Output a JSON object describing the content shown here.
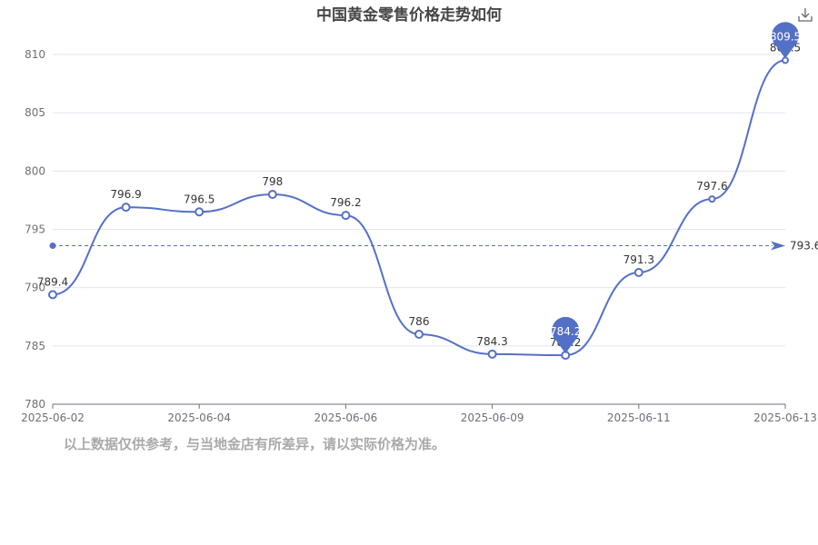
{
  "chart_data": {
    "type": "line",
    "title": "中国黄金零售价格走势如何",
    "x": [
      "2025-06-02",
      "2025-06-03",
      "2025-06-04",
      "2025-06-05",
      "2025-06-06",
      "2025-06-07",
      "2025-06-09",
      "2025-06-10",
      "2025-06-11",
      "2025-06-12",
      "2025-06-13"
    ],
    "xticks": [
      "2025-06-02",
      "2025-06-04",
      "2025-06-06",
      "2025-06-09",
      "2025-06-11",
      "2025-06-13"
    ],
    "series": [
      {
        "values": [
          789.4,
          796.9,
          796.5,
          798,
          796.2,
          786,
          784.3,
          784.2,
          791.3,
          797.6,
          809.5
        ],
        "color": "#5470c6",
        "smooth": true
      }
    ],
    "ylim": [
      780,
      810
    ],
    "yticks": [
      780,
      785,
      790,
      795,
      800,
      805,
      810
    ],
    "grid": true,
    "mark_point": {
      "max": {
        "value": 809.5,
        "label": "809.5"
      },
      "min": {
        "value": 784.2,
        "label": "784.2"
      }
    },
    "mark_line": {
      "type": "average",
      "value": 793.6,
      "label": "793.6"
    },
    "faded_labels": [
      9,
      10
    ],
    "xlabel": "",
    "ylabel": ""
  },
  "footnote": "以上数据仅供参考，与当地金店有所差异，请以实际价格为准。",
  "toolbar": {
    "download_icon": "download-icon"
  },
  "colors": {
    "series": "#5470c6",
    "axis": "#6e7079",
    "grid": "#e0e6f1",
    "footnote": "#a9a9a9",
    "title": "#464646"
  }
}
